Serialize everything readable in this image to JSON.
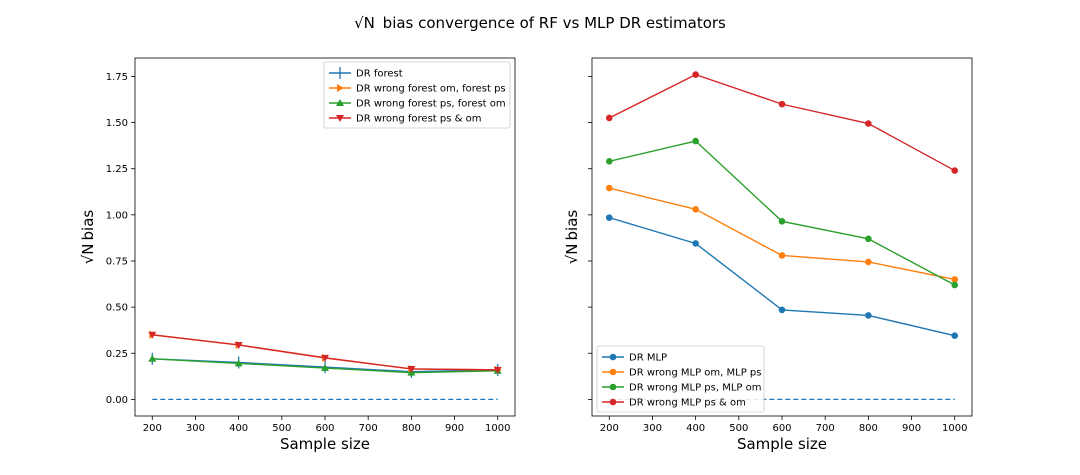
{
  "title": "bias convergence of RF vs MLP DR estimators",
  "title_symbol": "√N",
  "colors": {
    "blue": "#1f77b4",
    "orange": "#ff7f0e",
    "green": "#2ca02c",
    "red": "#d62728"
  },
  "chart_data": [
    {
      "type": "line",
      "x": [
        200,
        400,
        600,
        800,
        1000
      ],
      "xlabel": "Sample size",
      "ylabel": "bias",
      "ylabel_symbol": "√N",
      "xlim": [
        160,
        1040
      ],
      "ylim": [
        -0.09,
        1.85
      ],
      "xticks": [
        200,
        300,
        400,
        500,
        600,
        700,
        800,
        900,
        1000
      ],
      "yticks": [
        0.0,
        0.25,
        0.5,
        0.75,
        1.0,
        1.25,
        1.5,
        1.75
      ],
      "ytick_labels": [
        "0.00",
        "0.25",
        "0.50",
        "0.75",
        "1.00",
        "1.25",
        "1.50",
        "1.75"
      ],
      "legend_position": "upper-right",
      "zero_line": {
        "y": 0.0,
        "color": "#1f77b4",
        "style": "dashed"
      },
      "series": [
        {
          "name": "DR forest",
          "marker": "vline",
          "color": "#1f77b4",
          "values": [
            0.22,
            0.2,
            0.175,
            0.15,
            0.16
          ]
        },
        {
          "name": "DR wrong forest om, forest ps",
          "marker": "triangle-right",
          "color": "#ff7f0e",
          "values": [
            0.35,
            0.295,
            0.225,
            0.165,
            0.16
          ]
        },
        {
          "name": "DR wrong forest ps, forest om",
          "marker": "triangle-up",
          "color": "#2ca02c",
          "values": [
            0.22,
            0.195,
            0.17,
            0.145,
            0.155
          ]
        },
        {
          "name": "DR wrong forest ps & om",
          "marker": "triangle-down",
          "color": "#d62728",
          "values": [
            0.35,
            0.295,
            0.225,
            0.165,
            0.16
          ]
        }
      ]
    },
    {
      "type": "line",
      "x": [
        200,
        400,
        600,
        800,
        1000
      ],
      "xlabel": "Sample size",
      "ylabel": "bias",
      "ylabel_symbol": "√N",
      "xlim": [
        160,
        1040
      ],
      "ylim": [
        -0.09,
        1.85
      ],
      "xticks": [
        200,
        300,
        400,
        500,
        600,
        700,
        800,
        900,
        1000
      ],
      "legend_position": "lower-left",
      "zero_line": {
        "y": 0.0,
        "color": "#1f77b4",
        "style": "dashed"
      },
      "series": [
        {
          "name": "DR MLP",
          "marker": "circle",
          "color": "#1f77b4",
          "values": [
            0.985,
            0.845,
            0.485,
            0.455,
            0.345
          ]
        },
        {
          "name": "DR wrong MLP om, MLP ps",
          "marker": "circle",
          "color": "#ff7f0e",
          "values": [
            1.145,
            1.03,
            0.78,
            0.745,
            0.65
          ]
        },
        {
          "name": "DR wrong MLP ps, MLP om",
          "marker": "circle",
          "color": "#2ca02c",
          "values": [
            1.29,
            1.4,
            0.965,
            0.87,
            0.62
          ]
        },
        {
          "name": "DR wrong MLP ps & om",
          "marker": "circle",
          "color": "#d62728",
          "values": [
            1.525,
            1.76,
            1.6,
            1.495,
            1.24
          ]
        }
      ]
    }
  ]
}
